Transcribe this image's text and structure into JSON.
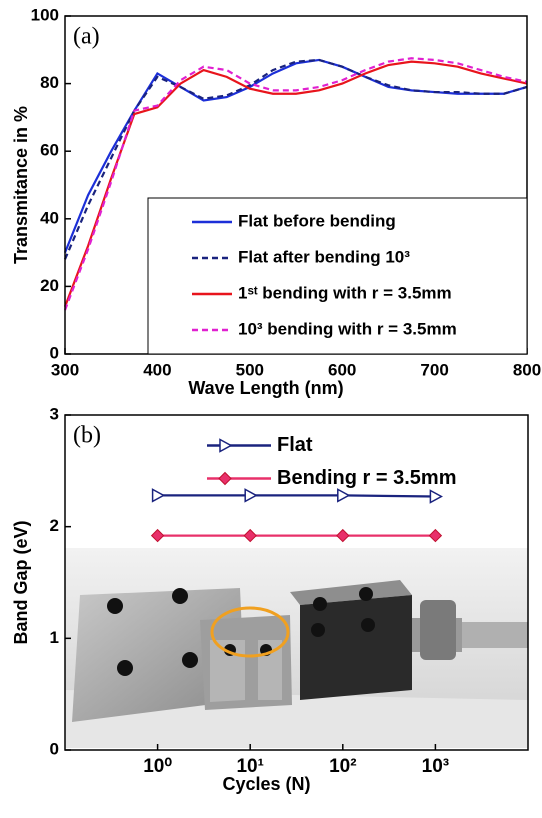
{
  "chart_data": [
    {
      "type": "line",
      "panel_label": "(a)",
      "xlabel": "Wave Length (nm)",
      "ylabel": "Transmitance in %",
      "x": [
        300,
        325,
        350,
        375,
        400,
        425,
        450,
        475,
        500,
        525,
        550,
        575,
        600,
        625,
        650,
        675,
        700,
        725,
        750,
        775,
        800
      ],
      "series": [
        {
          "name": "Flat before bending",
          "color": "#1c2fd8",
          "style": "solid",
          "values": [
            30,
            47,
            60,
            72,
            83,
            79,
            75,
            76,
            79,
            83,
            86,
            87,
            85,
            82,
            79,
            78,
            77.5,
            77,
            77,
            77,
            79
          ]
        },
        {
          "name": "Flat after bending 10³",
          "color": "#1a237e",
          "style": "dashed",
          "values": [
            28,
            44,
            58,
            72,
            82,
            79,
            75.5,
            76.5,
            79.5,
            84,
            86.5,
            87,
            85,
            82,
            79.5,
            78,
            77.5,
            77.5,
            77,
            77,
            79
          ]
        },
        {
          "name": "1ˢᵗ bending with r = 3.5mm",
          "color": "#e8141c",
          "style": "solid",
          "values": [
            14,
            32,
            52,
            71,
            73,
            80,
            84,
            82,
            78.5,
            77,
            77,
            78,
            80,
            83,
            85.5,
            86.5,
            86,
            85,
            83,
            81.5,
            80
          ]
        },
        {
          "name": "10³ bending with r = 3.5mm",
          "color": "#e020d0",
          "style": "dashed",
          "values": [
            13,
            31,
            51,
            72,
            73.5,
            81,
            85,
            84,
            80,
            78,
            78,
            79,
            81,
            84,
            86.5,
            87.5,
            87,
            86,
            84,
            82,
            80.5
          ]
        }
      ],
      "xlim": [
        300,
        800
      ],
      "xticks": [
        300,
        400,
        500,
        600,
        700,
        800
      ],
      "ylim": [
        0,
        100
      ],
      "yticks": [
        0,
        20,
        40,
        60,
        80,
        100
      ],
      "legend": "lower right"
    },
    {
      "type": "line",
      "panel_label": "(b)",
      "xlabel": "Cycles (N)",
      "ylabel": "Band Gap (eV)",
      "xscale": "log",
      "x": [
        1,
        10,
        100,
        1000
      ],
      "series": [
        {
          "name": "Flat",
          "color": "#1a237e",
          "style": "solid",
          "marker": "triangle",
          "values": [
            2.28,
            2.28,
            2.28,
            2.27
          ]
        },
        {
          "name": "Bending r = 3.5mm",
          "color": "#e8306a",
          "style": "solid",
          "marker": "diamond",
          "values": [
            1.92,
            1.92,
            1.92,
            1.92
          ]
        }
      ],
      "xlim": [
        0.1,
        10000
      ],
      "xticks": [
        {
          "value": 1,
          "label": "10⁰"
        },
        {
          "value": 10,
          "label": "10¹"
        },
        {
          "value": 100,
          "label": "10²"
        },
        {
          "value": 1000,
          "label": "10³"
        }
      ],
      "ylim": [
        0,
        3
      ],
      "yticks": [
        0,
        1,
        2,
        3
      ],
      "legend": "upper right"
    }
  ]
}
